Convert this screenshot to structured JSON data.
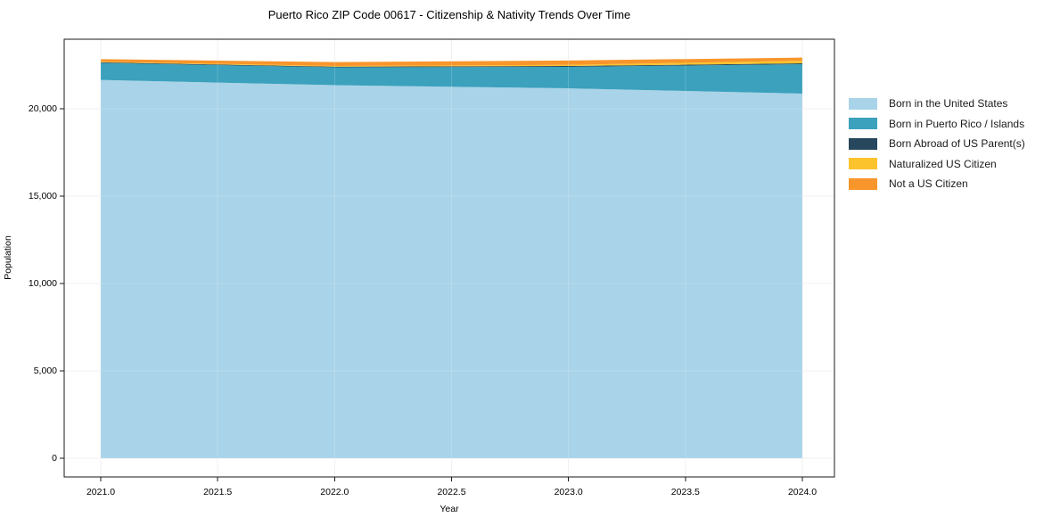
{
  "chart_data": {
    "type": "area",
    "stacked": true,
    "title": "Puerto Rico ZIP Code 00617 - Citizenship & Nativity Trends Over Time",
    "xlabel": "Year",
    "ylabel": "Population",
    "x": [
      2021,
      2022,
      2023,
      2024
    ],
    "series": [
      {
        "name": "Born in the United States",
        "color": "#a9d3e8",
        "values": [
          21650,
          21350,
          21170,
          20870
        ]
      },
      {
        "name": "Born in Puerto Rico / Islands",
        "color": "#3ba1bd",
        "values": [
          970,
          1020,
          1230,
          1680
        ]
      },
      {
        "name": "Born Abroad of US Parent(s)",
        "color": "#27485c",
        "values": [
          40,
          40,
          50,
          50
        ]
      },
      {
        "name": "Naturalized US Citizen",
        "color": "#fcc32d",
        "values": [
          30,
          40,
          60,
          150
        ]
      },
      {
        "name": "Not a US Citizen",
        "color": "#f8952b",
        "values": [
          150,
          220,
          250,
          180
        ]
      }
    ],
    "x_ticks": [
      "2021.0",
      "2021.5",
      "2022.0",
      "2022.5",
      "2023.0",
      "2023.5",
      "2024.0"
    ],
    "x_tick_values": [
      2021,
      2021.5,
      2022,
      2022.5,
      2023,
      2023.5,
      2024
    ],
    "y_ticks": [
      "0",
      "5,000",
      "10,000",
      "15,000",
      "20,000"
    ],
    "y_tick_values": [
      0,
      5000,
      10000,
      15000,
      20000
    ],
    "xlim": [
      2020.84,
      2024.14
    ],
    "ylim": [
      -1100,
      24000
    ],
    "grid": true,
    "legend_position": "right"
  },
  "colors": {
    "frame": "#1a1a1a",
    "gridline": "#d9d9d9",
    "background": "#ffffff",
    "text": "#000000"
  }
}
